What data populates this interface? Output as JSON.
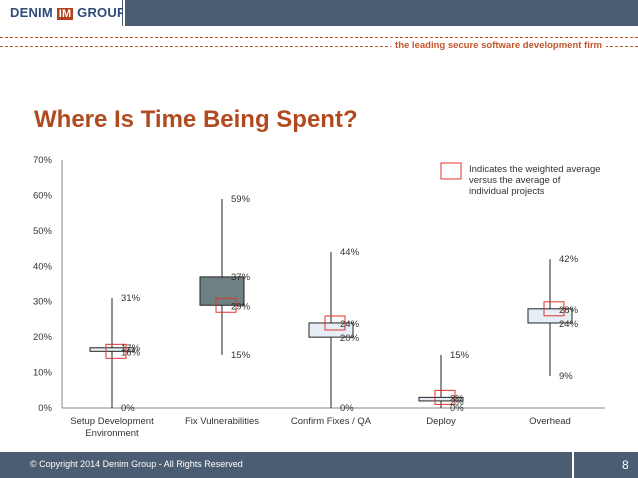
{
  "header": {
    "logo_left": "DENIM",
    "logo_mark": "IM",
    "logo_right": "GROUP",
    "tagline": "the leading secure software development firm"
  },
  "slide": {
    "title": "Where Is Time Being Spent?"
  },
  "chart_data": {
    "type": "box",
    "title": "",
    "xlabel": "",
    "ylabel": "",
    "ylim": [
      0,
      70
    ],
    "yticks": [
      "0%",
      "10%",
      "20%",
      "30%",
      "40%",
      "50%",
      "60%",
      "70%"
    ],
    "categories": [
      [
        "Setup Development",
        "Environment"
      ],
      [
        "Fix Vulnerabilities"
      ],
      [
        "Confirm Fixes / QA"
      ],
      [
        "Deploy"
      ],
      [
        "Overhead"
      ]
    ],
    "series": [
      {
        "min": 0,
        "q1": 16,
        "q3": 17,
        "max": 31,
        "weighted_avg": 16,
        "labels": {
          "max": "31%",
          "q3": "17%",
          "avg": "16%",
          "min": "0%"
        }
      },
      {
        "min": 15,
        "q1": 29,
        "q3": 37,
        "max": 59,
        "weighted_avg": 29,
        "labels": {
          "max": "59%",
          "q3": "37%",
          "avg": "29%",
          "min": "15%"
        }
      },
      {
        "min": 0,
        "q1": 20,
        "q3": 24,
        "max": 44,
        "weighted_avg": 24,
        "labels": {
          "max": "44%",
          "avg": "24%",
          "q1": "20%",
          "min": "0%"
        }
      },
      {
        "min": 0,
        "q1": 2,
        "q3": 3,
        "max": 15,
        "weighted_avg": 3,
        "labels": {
          "max": "15%",
          "avg": "3%",
          "q1": "2%",
          "min": "0%"
        }
      },
      {
        "min": 9,
        "q1": 24,
        "q3": 28,
        "max": 42,
        "weighted_avg": 28,
        "labels": {
          "max": "42%",
          "avg": "28%",
          "q1": "24%",
          "min": "9%"
        }
      }
    ],
    "legend": {
      "text": [
        "Indicates the weighted average",
        "versus the average of",
        "individual projects"
      ],
      "placement": "top-right",
      "marker_color": "#e0332b"
    },
    "colors": {
      "fix_vulnerabilities_box": "#6f8082",
      "box_default": "#e8eef5",
      "box_stroke": "#222222",
      "avg_marker": "#e0332b"
    }
  },
  "footer": {
    "copyright": "© Copyright 2014  Denim Group - All Rights Reserved",
    "page_number": "8"
  }
}
